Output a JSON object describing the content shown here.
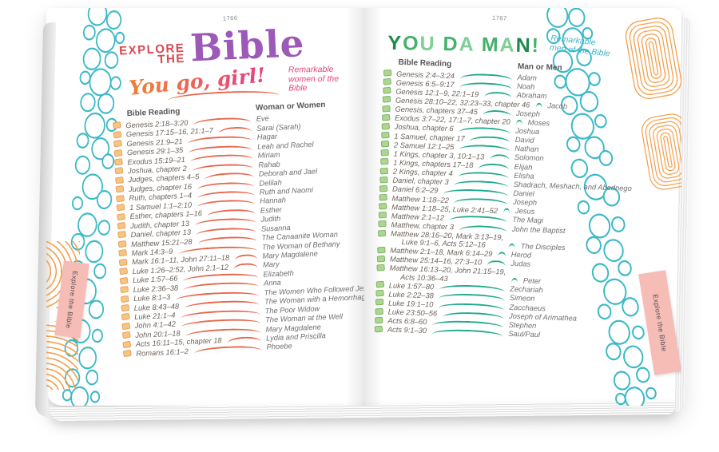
{
  "book": {
    "left_page": {
      "page_number": "1766",
      "brand": {
        "line1": "EXPLORE",
        "line2": "THE",
        "word": "Bible"
      },
      "section_title": "You go, girl!",
      "section_subtitle": "Remarkable women of the Bible",
      "col_reading": "Bible Reading",
      "col_name": "Woman or Women",
      "tab_label": "Explore the Bible",
      "rows": [
        {
          "reading": "Genesis 2:18–3:20",
          "name": "Eve"
        },
        {
          "reading": "Genesis 17:15–16, 21:1–7",
          "name": "Sarai (Sarah)"
        },
        {
          "reading": "Genesis 21:9–21",
          "name": "Hagar"
        },
        {
          "reading": "Genesis 29:1–35",
          "name": "Leah and Rachel"
        },
        {
          "reading": "Exodus 15:19–21",
          "name": "Miriam"
        },
        {
          "reading": "Joshua, chapter 2",
          "name": "Rahab"
        },
        {
          "reading": "Judges, chapters 4–5",
          "name": "Deborah and Jael"
        },
        {
          "reading": "Judges, chapter 16",
          "name": "Delilah"
        },
        {
          "reading": "Ruth, chapters 1–4",
          "name": "Ruth and Naomi"
        },
        {
          "reading": "1 Samuel 1:1–2:10",
          "name": "Hannah"
        },
        {
          "reading": "Esther, chapters 1–16",
          "name": "Esther"
        },
        {
          "reading": "Judith, chapter 13",
          "name": "Judith"
        },
        {
          "reading": "Daniel, chapter 13",
          "name": "Susanna"
        },
        {
          "reading": "Matthew 15:21–28",
          "name": "The Canaanite Woman"
        },
        {
          "reading": "Mark 14:3–9",
          "name": "The Woman of Bethany"
        },
        {
          "reading": "Mark 16:1–11, John 27:11–18",
          "name": "Mary Magdalene"
        },
        {
          "reading": "Luke 1:26–2:52, John 2:1–12",
          "name": "Mary"
        },
        {
          "reading": "Luke 1:57–66",
          "name": "Elizabeth"
        },
        {
          "reading": "Luke 2:36–38",
          "name": "Anna"
        },
        {
          "reading": "Luke 8:1–3",
          "name": "The Women Who Followed Jesus"
        },
        {
          "reading": "Luke 8:43–48",
          "name": "The Woman with a Hemorrhage"
        },
        {
          "reading": "Luke 21:1–4",
          "name": "The Poor Widow"
        },
        {
          "reading": "John 4:1–42",
          "name": "The Woman at the Well"
        },
        {
          "reading": "John 20:1–18",
          "name": "Mary Magdalene"
        },
        {
          "reading": "Acts 16:11–15, chapter 18",
          "name": "Lydia and Priscilla"
        },
        {
          "reading": "Romans 16:1–2",
          "name": "Phoebe"
        }
      ]
    },
    "right_page": {
      "page_number": "1767",
      "section_title": "YOU DA MAN!",
      "section_subtitle": "Remarkable men of the Bible",
      "col_reading": "Bible Reading",
      "col_name": "Man or Men",
      "tab_label": "Explore the Bible",
      "rows": [
        {
          "reading": "Genesis 2:4–3:24",
          "name": "Adam"
        },
        {
          "reading": "Genesis 6:5–9:17",
          "name": "Noah"
        },
        {
          "reading": "Genesis 12:1–9, 22:1–19",
          "name": "Abraham"
        },
        {
          "reading": "Genesis 28:10–22, 32:23–33, chapter 46",
          "name": "Jacob"
        },
        {
          "reading": "Genesis, chapters 37–45",
          "name": "Joseph"
        },
        {
          "reading": "Exodus 3:7–22, 17:1–7, chapter 20",
          "name": "Moses"
        },
        {
          "reading": "Joshua, chapter 6",
          "name": "Joshua"
        },
        {
          "reading": "1 Samuel, chapter 17",
          "name": "David"
        },
        {
          "reading": "2 Samuel 12:1–25",
          "name": "Nathan"
        },
        {
          "reading": "1 Kings, chapter 3, 10:1–13",
          "name": "Solomon"
        },
        {
          "reading": "1 Kings, chapters 17–18",
          "name": "Elijah"
        },
        {
          "reading": "2 Kings, chapter 4",
          "name": "Elisha"
        },
        {
          "reading": "Daniel, chapter 3",
          "name": "Shadrach, Meshach, and Abednego"
        },
        {
          "reading": "Daniel 6:2–29",
          "name": "Daniel"
        },
        {
          "reading": "Matthew 1:18–22",
          "name": "Joseph"
        },
        {
          "reading": "Matthew 1:18–25, Luke 2:41–52",
          "name": "Jesus"
        },
        {
          "reading": "Matthew 2:1–12",
          "name": "The Magi"
        },
        {
          "reading": "Matthew, chapter 3",
          "name": "John the Baptist"
        },
        {
          "reading": "Matthew 28:16–20, Mark 3:13–19,",
          "reading2": "Luke 9:1–6, Acts 5:12–16",
          "name": "The Disciples"
        },
        {
          "reading": "Matthew 2:1–18, Mark 6:14–29",
          "name": "Herod"
        },
        {
          "reading": "Matthew 25:14–16, 27:3–10",
          "name": "Judas"
        },
        {
          "reading": "Matthew 16:13–20, John 21:15–19,",
          "reading2": "Acts 10:36–43",
          "name": "Peter"
        },
        {
          "reading": "Luke 1:57–80",
          "name": "Zechariah"
        },
        {
          "reading": "Luke 2:22–38",
          "name": "Simeon"
        },
        {
          "reading": "Luke 19:1–10",
          "name": "Zacchaeus"
        },
        {
          "reading": "Luke 23:50–56",
          "name": "Joseph of Arimathea"
        },
        {
          "reading": "Acts 6:8–60",
          "name": "Stephen"
        },
        {
          "reading": "Acts 9:1–30",
          "name": "Saul/Paul"
        }
      ]
    },
    "icons": {
      "checkbox_left": "orange-sticky-note-checkbox",
      "checkbox_right": "green-sticky-note-checkbox",
      "border_left": "teal-pebble-pattern",
      "border_right": "teal-pebble-pattern",
      "corner_swirls": "orange-concentric-swirl"
    },
    "colors": {
      "left_accent": "#e8664a",
      "left_checkbox": "#f6c584",
      "left_checkbox_border": "#e9a159",
      "right_accent": "#1fa98c",
      "right_checkbox": "#aed690",
      "right_checkbox_border": "#7eb564",
      "title_red": "#d94a53",
      "title_purple": "#9c59b8",
      "script_pink": "#e8457c",
      "script_orange": "#ef7d3a",
      "teal_subtitle": "#3fb6c9",
      "pebble_teal": "#3bb9c7",
      "swirl_orange": "#f5a04c",
      "tab_pink": "#f6bcb6",
      "text_gray": "#6b625a",
      "green_letters": [
        "#1f8a4c",
        "#45b26b",
        "#7fcf96"
      ]
    }
  }
}
